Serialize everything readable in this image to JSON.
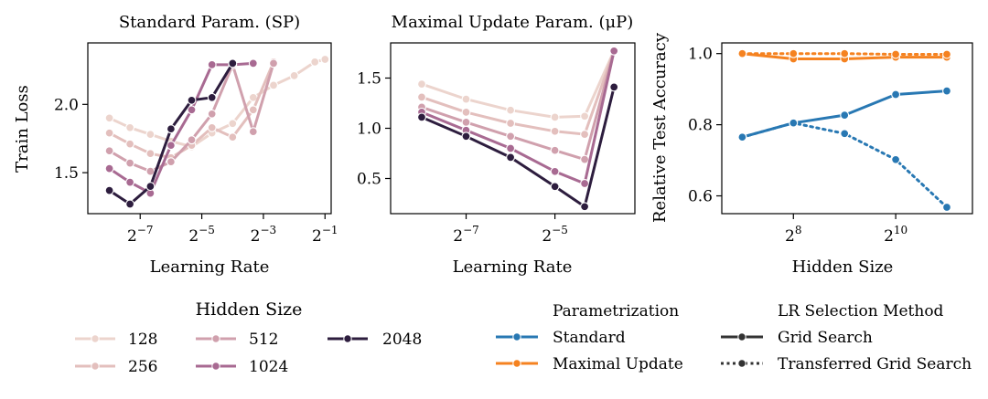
{
  "chart_data": [
    {
      "type": "line",
      "title": "Standard Param. (SP)",
      "xlabel": "Learning Rate",
      "ylabel": "Train Loss",
      "xscale": "log2",
      "xlim_exp": [
        -8.7,
        -0.8
      ],
      "ylim": [
        1.2,
        2.45
      ],
      "xtick_exps": [
        -7,
        -5,
        -3,
        -1
      ],
      "xtick_labels": [
        "2^-7",
        "2^-5",
        "2^-3",
        "2^-1"
      ],
      "yticks": [
        1.5,
        2.0
      ],
      "ytick_labels": [
        "1.5",
        "2.0"
      ],
      "series": [
        {
          "name": "128",
          "x_exp": [
            -8,
            -7.33,
            -6.67,
            -6,
            -5.33,
            -4.67,
            -4,
            -3.33,
            -2.67,
            -2,
            -1.33,
            -1
          ],
          "y": [
            1.9,
            1.83,
            1.78,
            1.73,
            1.69,
            1.79,
            1.86,
            2.05,
            2.14,
            2.21,
            2.31,
            2.33
          ]
        },
        {
          "name": "256",
          "x_exp": [
            -8,
            -7.33,
            -6.67,
            -6,
            -5.33,
            -4.67,
            -4,
            -3.33,
            -2.67
          ],
          "y": [
            1.79,
            1.71,
            1.64,
            1.61,
            1.7,
            1.83,
            1.76,
            1.96,
            2.31
          ]
        },
        {
          "name": "512",
          "x_exp": [
            -8,
            -7.33,
            -6.67,
            -6,
            -5.33,
            -4.67,
            -4,
            -3.33,
            -2.67
          ],
          "y": [
            1.66,
            1.57,
            1.51,
            1.58,
            1.74,
            1.93,
            2.29,
            1.8,
            2.3
          ]
        },
        {
          "name": "1024",
          "x_exp": [
            -8,
            -7.33,
            -6.67,
            -6,
            -5.33,
            -4.67,
            -4,
            -3.33
          ],
          "y": [
            1.53,
            1.43,
            1.35,
            1.7,
            1.96,
            2.29,
            2.29,
            2.3
          ]
        },
        {
          "name": "2048",
          "x_exp": [
            -8,
            -7.33,
            -6.67,
            -6,
            -5.33,
            -4.67,
            -4
          ],
          "y": [
            1.37,
            1.27,
            1.4,
            1.82,
            2.03,
            2.05,
            2.3
          ]
        }
      ]
    },
    {
      "type": "line",
      "title": "Maximal Update Param. (μP)",
      "xlabel": "Learning Rate",
      "ylabel": "",
      "xscale": "log2",
      "xlim_exp": [
        -8.7,
        -3.2
      ],
      "ylim": [
        0.15,
        1.85
      ],
      "xtick_exps": [
        -7,
        -5
      ],
      "xtick_labels": [
        "2^-7",
        "2^-5"
      ],
      "yticks": [
        0.5,
        1.0,
        1.5
      ],
      "ytick_labels": [
        "0.5",
        "1.0",
        "1.5"
      ],
      "series": [
        {
          "name": "128",
          "x_exp": [
            -8,
            -7,
            -6,
            -5,
            -4.33,
            -3.67
          ],
          "y": [
            1.44,
            1.29,
            1.18,
            1.11,
            1.12,
            1.77
          ]
        },
        {
          "name": "256",
          "x_exp": [
            -8,
            -7,
            -6,
            -5,
            -4.33,
            -3.67
          ],
          "y": [
            1.31,
            1.16,
            1.05,
            0.97,
            0.94,
            1.77
          ]
        },
        {
          "name": "512",
          "x_exp": [
            -8,
            -7,
            -6,
            -5,
            -4.33,
            -3.67
          ],
          "y": [
            1.21,
            1.06,
            0.92,
            0.78,
            0.69,
            1.77
          ]
        },
        {
          "name": "1024",
          "x_exp": [
            -8,
            -7,
            -6,
            -5,
            -4.33,
            -3.67
          ],
          "y": [
            1.16,
            0.98,
            0.8,
            0.57,
            0.45,
            1.77
          ]
        },
        {
          "name": "2048",
          "x_exp": [
            -8,
            -7,
            -6,
            -5,
            -4.33,
            -3.67
          ],
          "y": [
            1.11,
            0.92,
            0.71,
            0.42,
            0.22,
            1.41
          ]
        }
      ]
    },
    {
      "type": "line",
      "title": "",
      "xlabel": "Hidden Size",
      "ylabel": "Relative Test Accuracy",
      "xscale": "log2",
      "xlim_exp": [
        6.6,
        11.5
      ],
      "ylim": [
        0.55,
        1.03
      ],
      "xtick_exps": [
        8,
        10
      ],
      "xtick_labels": [
        "2^8",
        "2^10"
      ],
      "yticks": [
        0.6,
        0.8,
        1.0
      ],
      "ytick_labels": [
        "0.6",
        "0.8",
        "1.0"
      ],
      "series": [
        {
          "name": "Standard / Grid Search",
          "color_key": "standard",
          "style": "solid",
          "x_exp": [
            7,
            8,
            9,
            10,
            11
          ],
          "y": [
            0.765,
            0.805,
            0.827,
            0.885,
            0.895
          ]
        },
        {
          "name": "Standard / Transferred Grid Search",
          "color_key": "standard",
          "style": "dotted",
          "x_exp": [
            7,
            8,
            9,
            10,
            11
          ],
          "y": [
            0.765,
            0.805,
            0.775,
            0.702,
            0.568
          ]
        },
        {
          "name": "Maximal Update / Grid Search",
          "color_key": "mup",
          "style": "solid",
          "x_exp": [
            7,
            8,
            9,
            10,
            11
          ],
          "y": [
            1.0,
            0.985,
            0.985,
            0.99,
            0.99
          ]
        },
        {
          "name": "Maximal Update / Transferred Grid Search",
          "color_key": "mup",
          "style": "dotted",
          "x_exp": [
            7,
            8,
            9,
            10,
            11
          ],
          "y": [
            1.0,
            1.0,
            1.0,
            0.998,
            0.998
          ]
        }
      ]
    }
  ],
  "colors": {
    "hidden_sizes": {
      "128": "#ecd4cd",
      "256": "#e3bfbd",
      "512": "#d0a0ad",
      "1024": "#a86a92",
      "2048": "#2d1d3e"
    },
    "standard": "#2878b3",
    "mup": "#f58220",
    "method": "#333333"
  },
  "legends": {
    "hidden_size": {
      "title": "Hidden Size",
      "entries": [
        "128",
        "256",
        "512",
        "1024",
        "2048"
      ]
    },
    "parametrization": {
      "title": "Parametrization",
      "entries": [
        "Standard",
        "Maximal Update"
      ]
    },
    "lr_method": {
      "title": "LR Selection Method",
      "entries": [
        "Grid Search",
        "Transferred Grid Search"
      ]
    }
  }
}
